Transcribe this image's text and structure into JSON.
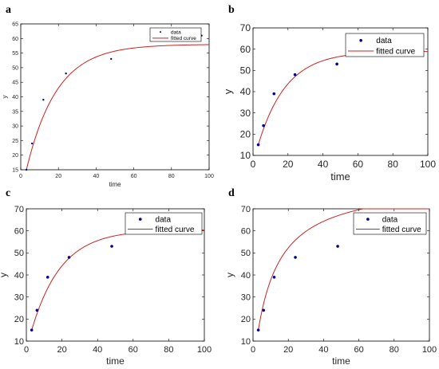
{
  "chart_data": [
    {
      "panel": "a",
      "type": "scatter",
      "xlabel": "time",
      "ylabel": "y",
      "xlim": [
        0,
        100
      ],
      "ylim": [
        15,
        65
      ],
      "xticks": [
        0,
        20,
        40,
        60,
        80,
        100
      ],
      "yticks": [
        15,
        20,
        25,
        30,
        35,
        40,
        45,
        50,
        55,
        60,
        65
      ],
      "legend_position": "top-right",
      "grid": false,
      "series": [
        {
          "name": "data",
          "kind": "points",
          "color": "#00008b",
          "x": [
            3,
            6,
            12,
            24,
            48,
            96
          ],
          "y": [
            15,
            24,
            39,
            48,
            53,
            61
          ]
        },
        {
          "name": "fitted curve",
          "kind": "line",
          "color": "#cc2222",
          "model": {
            "a": 58,
            "c": 15,
            "b": 0.062
          }
        }
      ]
    },
    {
      "panel": "b",
      "type": "scatter",
      "xlabel": "time",
      "ylabel": "y",
      "xlim": [
        0,
        100
      ],
      "ylim": [
        10,
        70
      ],
      "xticks": [
        0,
        20,
        40,
        60,
        80,
        100
      ],
      "yticks": [
        10,
        20,
        30,
        40,
        50,
        60,
        70
      ],
      "legend_position": "top-right",
      "grid": false,
      "series": [
        {
          "name": "data",
          "kind": "points",
          "color": "#00008b",
          "x": [
            3,
            6,
            12,
            24,
            48,
            96
          ],
          "y": [
            15,
            24,
            39,
            48,
            53,
            61
          ]
        },
        {
          "name": "fitted curve",
          "kind": "line",
          "color": "#cc2222",
          "model": {
            "a": 59,
            "c": 15,
            "b": 0.062
          }
        }
      ]
    },
    {
      "panel": "c",
      "type": "scatter",
      "xlabel": "time",
      "ylabel": "y",
      "xlim": [
        0,
        100
      ],
      "ylim": [
        10,
        70
      ],
      "xticks": [
        0,
        20,
        40,
        60,
        80,
        100
      ],
      "yticks": [
        10,
        20,
        30,
        40,
        50,
        60,
        70
      ],
      "legend_position": "top-right",
      "grid": false,
      "series": [
        {
          "name": "data",
          "kind": "points",
          "color": "#00008b",
          "x": [
            3,
            6,
            12,
            24,
            48,
            96
          ],
          "y": [
            15,
            24,
            39,
            48,
            53,
            61
          ]
        },
        {
          "name": "fitted curve",
          "kind": "line",
          "color": "#cc2222",
          "model": {
            "a": 60.5,
            "c": 15,
            "b": 0.06
          }
        }
      ]
    },
    {
      "panel": "d",
      "type": "scatter",
      "xlabel": "time",
      "ylabel": "y",
      "xlim": [
        0,
        100
      ],
      "ylim": [
        10,
        70
      ],
      "xticks": [
        0,
        20,
        40,
        60,
        80,
        100
      ],
      "yticks": [
        10,
        20,
        30,
        40,
        50,
        60,
        70
      ],
      "legend_position": "top-right",
      "grid": false,
      "series": [
        {
          "name": "data",
          "kind": "points",
          "color": "#00008b",
          "x": [
            3,
            6,
            12,
            24,
            48,
            96
          ],
          "y": [
            15,
            24,
            39,
            48,
            53,
            61
          ]
        },
        {
          "name": "fitted curve",
          "kind": "line",
          "color": "#cc2222",
          "model": {
            "vmax": 68,
            "k": 14,
            "c": 15,
            "t0": 3
          }
        }
      ]
    }
  ]
}
